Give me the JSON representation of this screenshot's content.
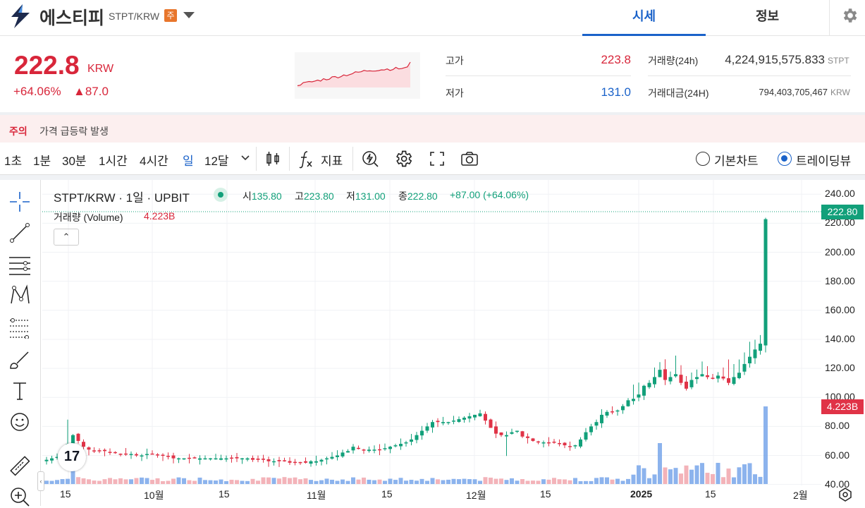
{
  "header": {
    "coin_name": "에스티피",
    "pair": "STPT/KRW",
    "warning_badge": "주",
    "tabs": [
      {
        "label": "시세",
        "active": true
      },
      {
        "label": "정보",
        "active": false
      }
    ]
  },
  "summary": {
    "price": "222.8",
    "unit": "KRW",
    "change_pct": "+64.06%",
    "change_val": "▲87.0",
    "high_label": "고가",
    "high": "223.8",
    "low_label": "저가",
    "low": "131.0",
    "volume_label": "거래량(24h)",
    "volume": "4,224,915,575.833",
    "volume_unit": "STPT",
    "amount_label": "거래대금(24H)",
    "amount": "794,403,705,467",
    "amount_unit": "KRW"
  },
  "caution": {
    "tag": "주의",
    "text": "가격 급등락 발생"
  },
  "toolbar": {
    "intervals": [
      {
        "label": "1초",
        "selected": false
      },
      {
        "label": "1분",
        "selected": false
      },
      {
        "label": "30분",
        "selected": false
      },
      {
        "label": "1시간",
        "selected": false
      },
      {
        "label": "4시간",
        "selected": false
      },
      {
        "label": "일",
        "selected": true
      },
      {
        "label": "12달",
        "selected": false
      }
    ],
    "indicator_label": "지표",
    "chart_types": [
      {
        "label": "기본차트",
        "selected": false
      },
      {
        "label": "트레이딩뷰",
        "selected": true
      }
    ]
  },
  "legend": {
    "title": "STPT/KRW · 1일 · UPBIT",
    "open_label": "시",
    "open": "135.80",
    "high_label": "고",
    "high": "223.80",
    "low_label": "저",
    "low": "131.00",
    "close_label": "종",
    "close": "222.80",
    "change": "+87.00 (+64.06%)",
    "volume_label": "거래량 (Volume)",
    "volume_value": "4.223B"
  },
  "colors": {
    "up": "#12a07a",
    "down": "#e03347",
    "vol_up": "#6fa0e8",
    "vol_down": "#f0a0a8",
    "accent": "#1a62c9"
  },
  "chart_data": {
    "type": "candlestick",
    "ylim": [
      30,
      250
    ],
    "y_ticks": [
      "240.00",
      "220.00",
      "200.00",
      "180.00",
      "160.00",
      "140.00",
      "120.00",
      "100.00",
      "80.00",
      "60.00",
      "40.00"
    ],
    "x_ticks": [
      "15",
      "10월",
      "15",
      "11월",
      "15",
      "12월",
      "15",
      "2025",
      "15",
      "2월"
    ],
    "last_price_badge": "222.80",
    "last_volume_badge": "4.223B",
    "close_series": [
      57,
      58,
      59,
      60,
      68,
      74,
      70,
      66,
      64,
      63,
      63,
      63,
      62,
      62,
      61,
      61,
      61,
      60,
      60,
      61,
      61,
      60,
      60,
      59,
      58,
      58,
      58,
      58,
      58,
      58,
      58,
      58,
      58,
      58,
      58,
      58,
      58,
      58,
      58,
      57,
      57,
      57,
      56,
      56,
      56,
      56,
      55,
      55,
      55,
      55,
      56,
      56,
      57,
      58,
      59,
      60,
      62,
      63,
      66,
      65,
      64,
      64,
      64,
      64,
      65,
      66,
      67,
      68,
      69,
      71,
      74,
      77,
      80,
      83,
      83,
      83,
      83,
      84,
      85,
      86,
      87,
      88,
      89,
      84,
      79,
      75,
      74,
      74,
      76,
      77,
      73,
      72,
      70,
      69,
      69,
      69,
      69,
      68,
      67,
      66,
      67,
      71,
      76,
      80,
      83,
      88,
      90,
      90,
      91,
      94,
      98,
      99,
      102,
      108,
      110,
      114,
      119,
      112,
      114,
      116,
      110,
      106,
      112,
      114,
      116,
      114,
      113,
      115,
      113,
      110,
      114,
      117,
      123,
      128,
      133,
      137,
      222.8
    ]
  }
}
